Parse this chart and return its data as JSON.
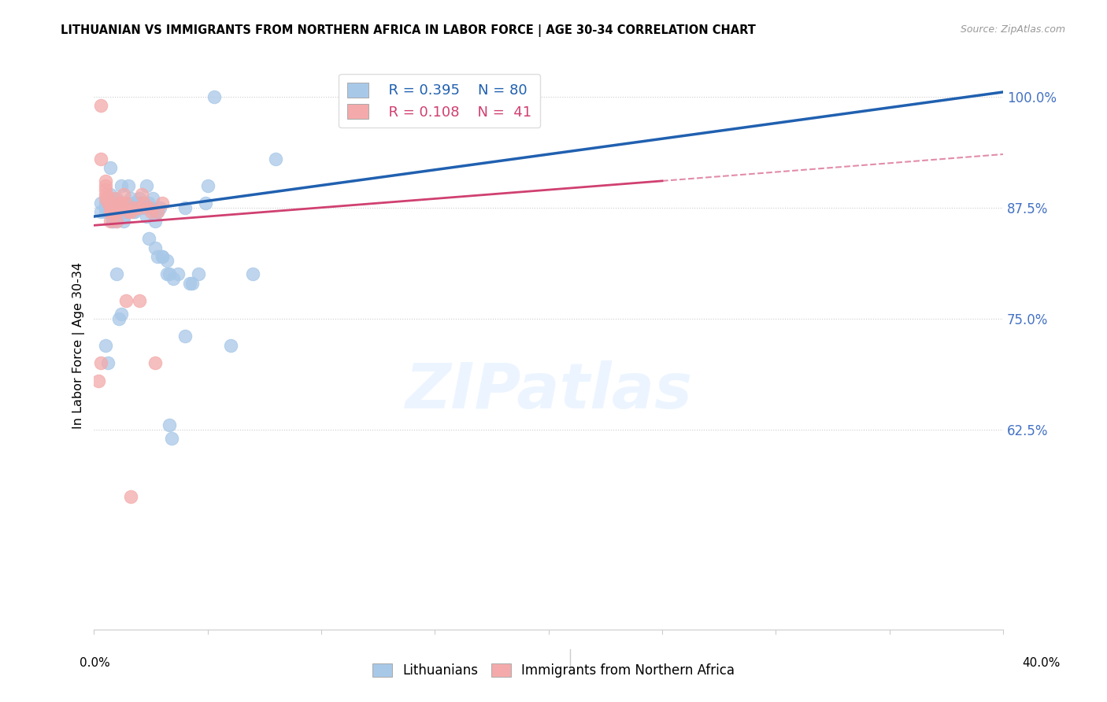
{
  "title": "LITHUANIAN VS IMMIGRANTS FROM NORTHERN AFRICA IN LABOR FORCE | AGE 30-34 CORRELATION CHART",
  "source": "Source: ZipAtlas.com",
  "ylabel": "In Labor Force | Age 30-34",
  "watermark": "ZIPatlas",
  "legend_r1": "R = 0.395",
  "legend_n1": "N = 80",
  "legend_r2": "R = 0.108",
  "legend_n2": "N =  41",
  "blue_color": "#A8C8E8",
  "pink_color": "#F4AAAA",
  "blue_line_color": "#2060B0",
  "pink_line_color": "#D04070",
  "blue_scatter": [
    [
      0.5,
      88.0
    ],
    [
      0.5,
      87.5
    ],
    [
      0.5,
      87.5
    ],
    [
      0.5,
      87.0
    ],
    [
      0.7,
      92.0
    ],
    [
      0.7,
      89.0
    ],
    [
      0.8,
      87.5
    ],
    [
      0.8,
      87.0
    ],
    [
      0.8,
      86.0
    ],
    [
      0.8,
      86.0
    ],
    [
      1.0,
      88.5
    ],
    [
      1.0,
      88.0
    ],
    [
      1.0,
      87.5
    ],
    [
      1.0,
      87.5
    ],
    [
      1.0,
      87.0
    ],
    [
      1.0,
      86.0
    ],
    [
      1.2,
      90.0
    ],
    [
      1.2,
      87.5
    ],
    [
      1.3,
      88.0
    ],
    [
      1.3,
      87.0
    ],
    [
      1.3,
      86.5
    ],
    [
      1.3,
      86.0
    ],
    [
      1.4,
      88.0
    ],
    [
      1.4,
      87.5
    ],
    [
      1.4,
      87.0
    ],
    [
      1.5,
      90.0
    ],
    [
      1.5,
      87.5
    ],
    [
      1.5,
      87.0
    ],
    [
      1.6,
      88.5
    ],
    [
      1.6,
      87.5
    ],
    [
      1.7,
      88.0
    ],
    [
      1.7,
      87.5
    ],
    [
      1.7,
      87.0
    ],
    [
      1.8,
      87.5
    ],
    [
      1.8,
      87.0
    ],
    [
      1.9,
      88.0
    ],
    [
      1.9,
      87.5
    ],
    [
      2.0,
      88.5
    ],
    [
      2.0,
      87.5
    ],
    [
      2.1,
      88.0
    ],
    [
      2.2,
      87.5
    ],
    [
      2.3,
      90.0
    ],
    [
      2.3,
      86.5
    ],
    [
      2.4,
      88.0
    ],
    [
      2.4,
      84.0
    ],
    [
      2.5,
      87.5
    ],
    [
      2.6,
      88.5
    ],
    [
      2.7,
      83.0
    ],
    [
      2.7,
      87.0
    ],
    [
      2.7,
      86.0
    ],
    [
      2.8,
      87.0
    ],
    [
      2.8,
      82.0
    ],
    [
      2.9,
      87.5
    ],
    [
      3.0,
      82.0
    ],
    [
      3.2,
      81.5
    ],
    [
      3.2,
      80.0
    ],
    [
      3.3,
      80.0
    ],
    [
      3.5,
      79.5
    ],
    [
      3.7,
      80.0
    ],
    [
      4.0,
      73.0
    ],
    [
      4.2,
      79.0
    ],
    [
      4.3,
      79.0
    ],
    [
      4.6,
      80.0
    ],
    [
      4.9,
      88.0
    ],
    [
      5.3,
      100.0
    ],
    [
      0.5,
      72.0
    ],
    [
      0.6,
      70.0
    ],
    [
      3.3,
      63.0
    ],
    [
      3.4,
      61.5
    ],
    [
      1.1,
      75.0
    ],
    [
      1.2,
      75.5
    ],
    [
      1.0,
      80.0
    ],
    [
      6.0,
      72.0
    ],
    [
      7.0,
      80.0
    ],
    [
      4.0,
      87.5
    ],
    [
      5.0,
      90.0
    ],
    [
      8.0,
      93.0
    ],
    [
      3.0,
      82.0
    ],
    [
      0.3,
      88.0
    ],
    [
      0.3,
      87.0
    ]
  ],
  "pink_scatter": [
    [
      0.3,
      99.0
    ],
    [
      0.3,
      93.0
    ],
    [
      0.5,
      90.5
    ],
    [
      0.5,
      90.0
    ],
    [
      0.5,
      89.5
    ],
    [
      0.5,
      89.0
    ],
    [
      0.5,
      88.5
    ],
    [
      0.6,
      88.5
    ],
    [
      0.6,
      88.0
    ],
    [
      0.7,
      87.5
    ],
    [
      0.7,
      87.0
    ],
    [
      0.7,
      86.0
    ],
    [
      0.8,
      88.0
    ],
    [
      0.8,
      87.5
    ],
    [
      0.8,
      87.0
    ],
    [
      0.9,
      88.5
    ],
    [
      0.9,
      87.5
    ],
    [
      1.0,
      87.0
    ],
    [
      1.0,
      86.0
    ],
    [
      1.1,
      87.5
    ],
    [
      1.2,
      88.0
    ],
    [
      1.2,
      87.5
    ],
    [
      1.3,
      89.0
    ],
    [
      1.3,
      87.5
    ],
    [
      1.4,
      88.0
    ],
    [
      1.5,
      87.0
    ],
    [
      1.6,
      87.0
    ],
    [
      1.8,
      87.5
    ],
    [
      2.0,
      87.5
    ],
    [
      2.0,
      77.0
    ],
    [
      2.1,
      89.0
    ],
    [
      2.2,
      88.0
    ],
    [
      2.4,
      87.5
    ],
    [
      2.5,
      87.0
    ],
    [
      2.7,
      70.0
    ],
    [
      2.8,
      87.0
    ],
    [
      3.0,
      88.0
    ],
    [
      1.4,
      77.0
    ],
    [
      0.3,
      70.0
    ],
    [
      1.6,
      55.0
    ],
    [
      0.2,
      68.0
    ]
  ],
  "blue_line": [
    0.0,
    40.0,
    86.5,
    100.5
  ],
  "pink_line": [
    0.0,
    25.0,
    85.5,
    90.5
  ],
  "pink_dash_line": [
    25.0,
    40.0,
    90.5,
    93.5
  ],
  "xlim": [
    0.0,
    40.0
  ],
  "ylim": [
    40.0,
    104.0
  ],
  "yticks": [
    62.5,
    75.0,
    87.5,
    100.0
  ],
  "ytick_labels": [
    "62.5%",
    "75.0%",
    "87.5%",
    "100.0%"
  ],
  "xtick_positions": [
    0,
    5,
    10,
    15,
    20,
    25,
    30,
    35,
    40
  ]
}
